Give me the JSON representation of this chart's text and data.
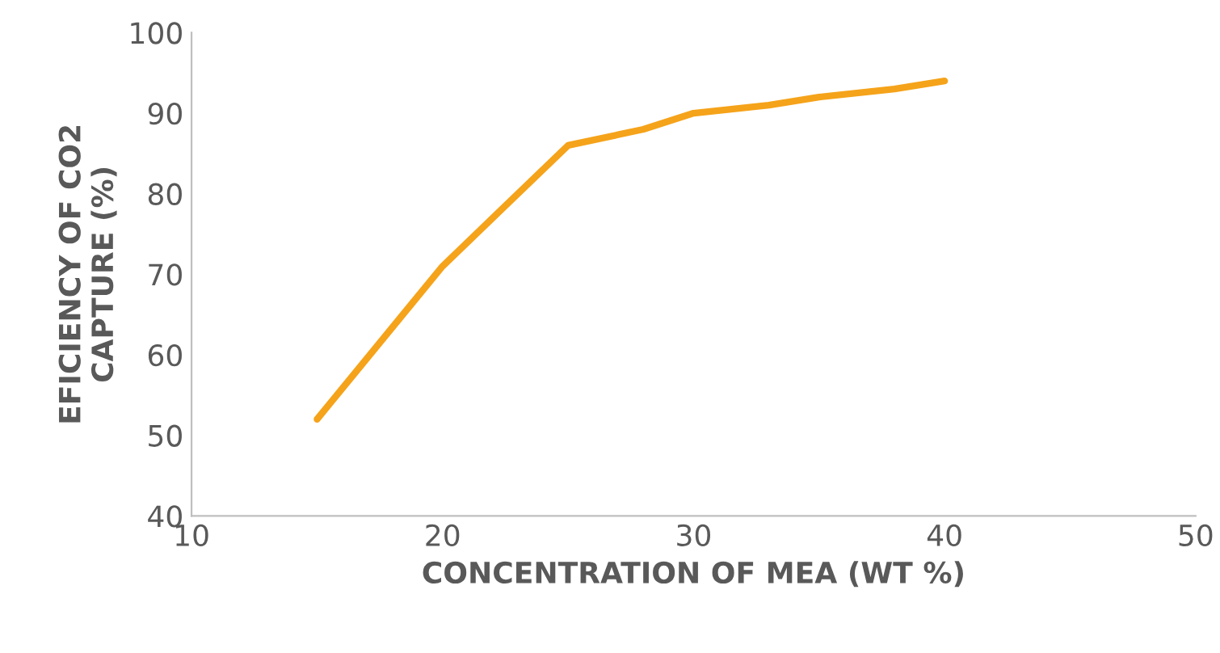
{
  "chart_data": {
    "type": "line",
    "xlabel": "CONCENTRATION OF MEA (WT %)",
    "ylabel": "EFICIENCY OF CO2\nCAPTURE (%)",
    "x": [
      15,
      20,
      25,
      28,
      30,
      33,
      35,
      38,
      40
    ],
    "series": [
      {
        "color": "#f5a31a",
        "values": [
          52,
          71,
          86,
          88,
          90,
          91,
          92,
          93,
          94
        ]
      }
    ],
    "xlim": [
      10,
      50
    ],
    "xticks": [
      10,
      20,
      30,
      40,
      50
    ],
    "ylim": [
      40,
      100
    ],
    "yticks": [
      40,
      50,
      60,
      70,
      80,
      90,
      100
    ],
    "grid": false,
    "marker": "none",
    "line_style": "solid"
  }
}
